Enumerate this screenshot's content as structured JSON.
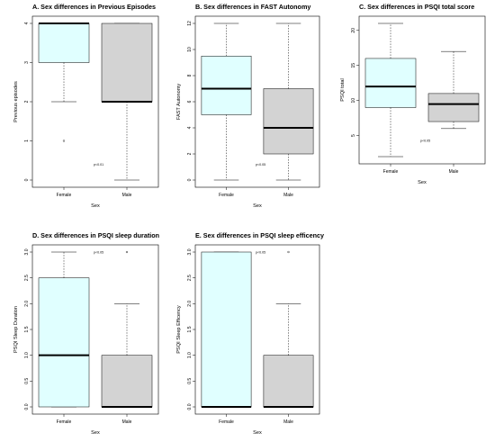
{
  "chart_data": [
    {
      "type": "boxplot",
      "title": "A. Sex differences in Previous Episodes",
      "xlabel": "Sex",
      "ylabel": "Previous episodes",
      "ylim": [
        0,
        4
      ],
      "yticks": [
        0,
        1,
        2,
        3,
        4
      ],
      "annotation": "p<0.01",
      "annotation_pos": {
        "x": 1.5,
        "y": 0.4
      },
      "groups": [
        {
          "name": "Female",
          "whisker_low": 2,
          "q1": 3,
          "median": 4,
          "q3": 4,
          "whisker_high": 4,
          "outliers": [
            1
          ],
          "color": "#e0ffff"
        },
        {
          "name": "Male",
          "whisker_low": 0,
          "q1": 2,
          "median": 2,
          "q3": 4,
          "whisker_high": 4,
          "outliers": [],
          "color": "#d3d3d3"
        }
      ]
    },
    {
      "type": "boxplot",
      "title": "B. Sex differences in FAST Autonomy",
      "xlabel": "Sex",
      "ylabel": "FAST Autonomy",
      "ylim": [
        0,
        12
      ],
      "yticks": [
        0,
        2,
        4,
        6,
        8,
        10,
        12
      ],
      "annotation": "p<0.05",
      "annotation_pos": {
        "x": 1.5,
        "y": 1.2
      },
      "groups": [
        {
          "name": "Female",
          "whisker_low": 0,
          "q1": 5,
          "median": 7,
          "q3": 9.5,
          "whisker_high": 12,
          "outliers": [],
          "color": "#e0ffff"
        },
        {
          "name": "Male",
          "whisker_low": 0,
          "q1": 2,
          "median": 4,
          "q3": 7,
          "whisker_high": 12,
          "outliers": [],
          "color": "#d3d3d3"
        }
      ]
    },
    {
      "type": "boxplot",
      "title": "C. Sex differences in PSQI total score",
      "xlabel": "Sex",
      "ylabel": "PSQI total",
      "ylim": [
        2,
        21
      ],
      "yticks": [
        5,
        10,
        15,
        20
      ],
      "annotation": "p<0.05",
      "annotation_pos": {
        "x": 1.5,
        "y": 4.3
      },
      "groups": [
        {
          "name": "Female",
          "whisker_low": 2,
          "q1": 9,
          "median": 12,
          "q3": 16,
          "whisker_high": 21,
          "outliers": [],
          "color": "#e0ffff"
        },
        {
          "name": "Male",
          "whisker_low": 6,
          "q1": 7,
          "median": 9.5,
          "q3": 11,
          "whisker_high": 17,
          "outliers": [],
          "color": "#d3d3d3"
        }
      ]
    },
    {
      "type": "boxplot",
      "title": "D. Sex differences in PSQI sleep duration",
      "xlabel": "Sex",
      "ylabel": "PSQI Sleep Duration",
      "ylim": [
        0,
        3
      ],
      "yticks": [
        0.0,
        0.5,
        1.0,
        1.5,
        2.0,
        2.5,
        3.0
      ],
      "annotation": "p<0.05",
      "annotation_pos": {
        "x": 1.5,
        "y": 3.0
      },
      "groups": [
        {
          "name": "Female",
          "whisker_low": 0,
          "q1": 0,
          "median": 1,
          "q3": 2.5,
          "whisker_high": 3,
          "outliers": [],
          "color": "#e0ffff"
        },
        {
          "name": "Male",
          "whisker_low": 0,
          "q1": 0,
          "median": 0,
          "q3": 1,
          "whisker_high": 2,
          "outliers": [
            3
          ],
          "color": "#d3d3d3"
        }
      ]
    },
    {
      "type": "boxplot",
      "title": "E. Sex differences in PSQI sleep efficency",
      "xlabel": "Sex",
      "ylabel": "PSQI Sleep Efficency",
      "ylim": [
        0,
        3
      ],
      "yticks": [
        0.0,
        0.5,
        1.0,
        1.5,
        2.0,
        2.5,
        3.0
      ],
      "annotation": "p<0.05",
      "annotation_pos": {
        "x": 1.5,
        "y": 3.0
      },
      "groups": [
        {
          "name": "Female",
          "whisker_low": 0,
          "q1": 0,
          "median": 0,
          "q3": 3,
          "whisker_high": 3,
          "outliers": [],
          "color": "#e0ffff"
        },
        {
          "name": "Male",
          "whisker_low": 0,
          "q1": 0,
          "median": 0,
          "q3": 1,
          "whisker_high": 2,
          "outliers": [
            3
          ],
          "color": "#d3d3d3"
        }
      ]
    }
  ]
}
